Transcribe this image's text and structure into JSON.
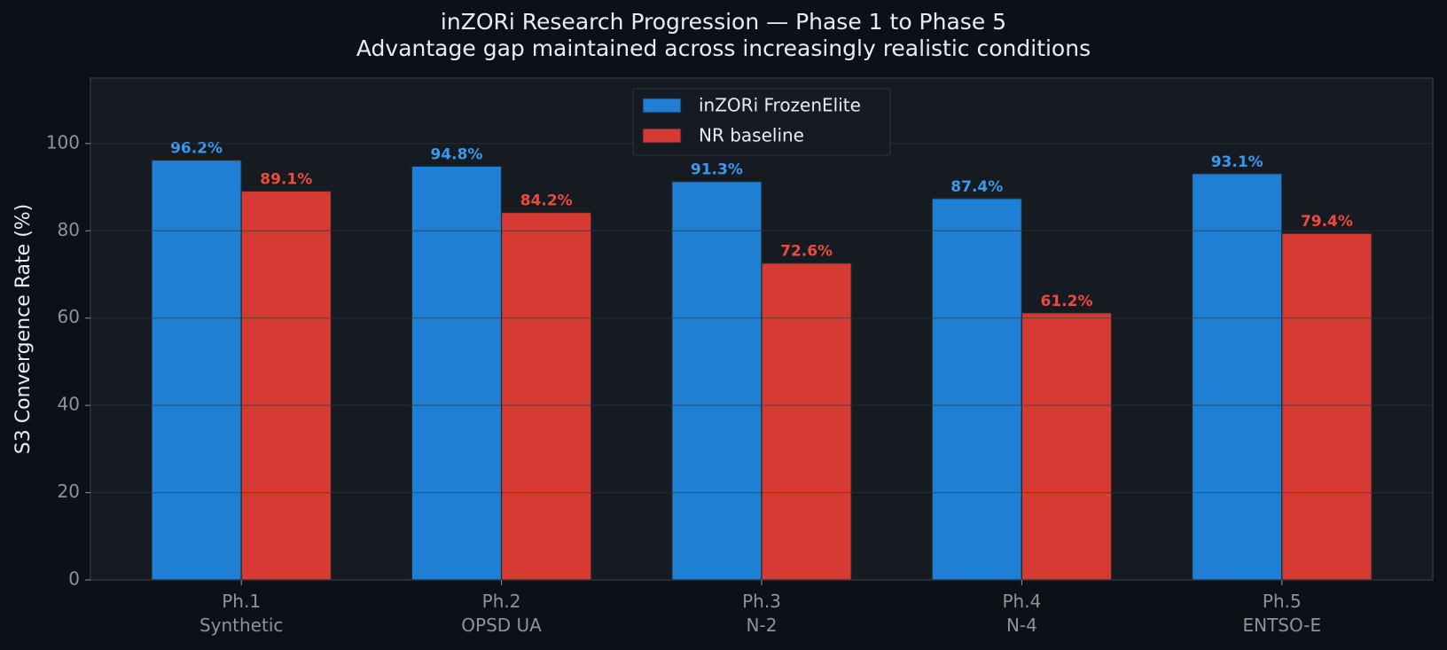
{
  "chart_data": {
    "type": "bar",
    "title": "inZORi Research Progression — Phase 1 to Phase 5",
    "subtitle": "Advantage gap maintained across increasingly realistic conditions",
    "y_label": "S3 Convergence Rate (%)",
    "categories": [
      "Ph.1\nSynthetic",
      "Ph.2\nOPSD UA",
      "Ph.3\nN-2",
      "Ph.4\nN-4",
      "Ph.5\nENTSO-E"
    ],
    "series": [
      {
        "name": "inZORi FrozenElite",
        "color": "#1f7fd3",
        "label_color": "#3b98ea",
        "values": [
          96.2,
          94.8,
          91.3,
          87.4,
          93.1
        ],
        "value_labels": [
          "96.2%",
          "94.8%",
          "91.3%",
          "87.4%",
          "93.1%"
        ]
      },
      {
        "name": "NR baseline",
        "color": "#d63b33",
        "label_color": "#ec4a3f",
        "values": [
          89.1,
          84.2,
          72.6,
          61.2,
          79.4
        ],
        "value_labels": [
          "89.1%",
          "84.2%",
          "72.6%",
          "61.2%",
          "79.4%"
        ]
      }
    ],
    "ylim": [
      0,
      115
    ],
    "yticks": [
      0,
      20,
      40,
      60,
      80,
      100
    ],
    "grid": true,
    "legend": "upper center"
  }
}
